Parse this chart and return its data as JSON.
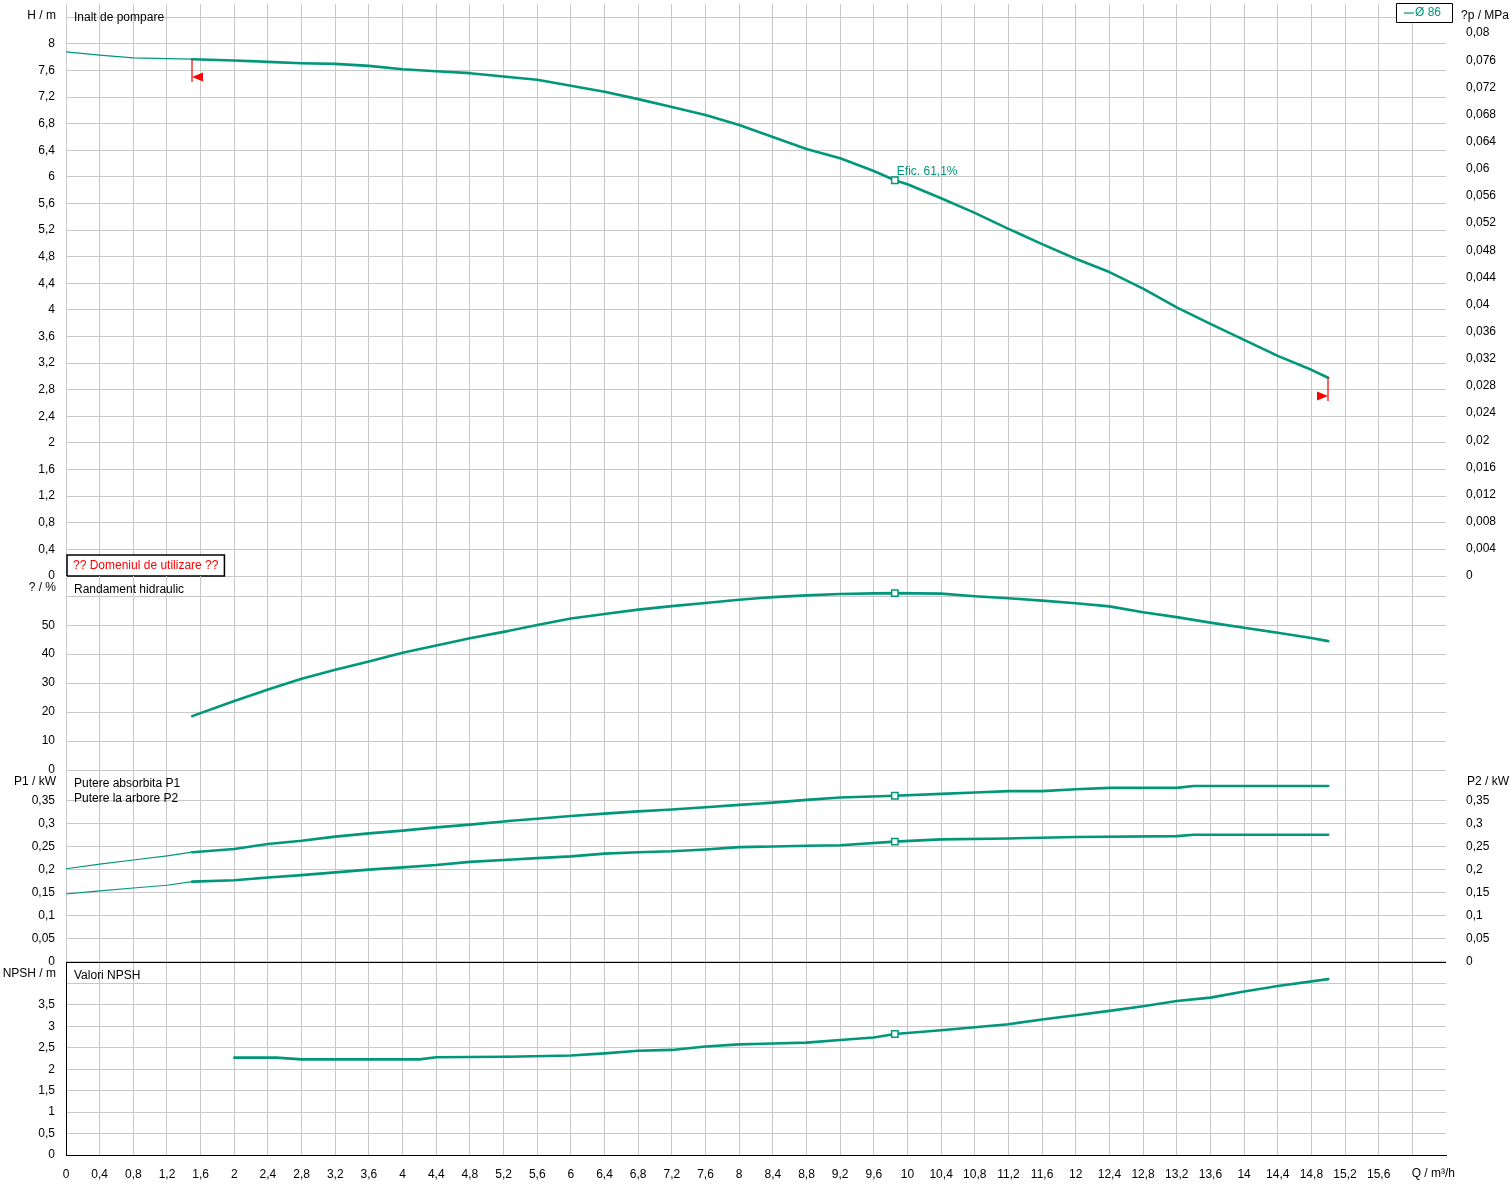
{
  "chart_data": [
    {
      "type": "line",
      "title": "Inalt de pompare",
      "ylabel": "H / m",
      "y2label": "?p / MPa",
      "legend": "top right",
      "grid": true,
      "tick_labels": "y",
      "annotations": [
        "?? Domeniul de utilizare ??",
        {
          "text": "Efic. 61,1%",
          "x": 9.85,
          "y": 5.95
        }
      ],
      "xlim": [
        0,
        16.4
      ],
      "xticks": [
        0,
        0.4,
        0.8,
        1.2,
        1.6,
        2,
        2.4,
        2.8,
        3.2,
        3.6,
        4,
        4.4,
        4.8,
        5.2,
        5.6,
        6,
        6.4,
        6.8,
        7.2,
        7.6,
        8,
        8.4,
        8.8,
        9.2,
        9.6,
        10,
        10.4,
        10.8,
        11.2,
        11.6,
        12,
        12.4,
        12.8,
        13.2,
        13.6,
        14,
        14.4,
        14.8,
        15.2,
        15.6,
        16
      ],
      "ylim": [
        0,
        8.6
      ],
      "yticks": [
        0,
        {
          "value": 0.4,
          "label": "0,4"
        },
        {
          "value": 0.8,
          "label": "0,8"
        },
        {
          "value": 1.2,
          "label": "1,2"
        },
        {
          "value": 1.6,
          "label": "1,6"
        },
        2,
        {
          "value": 2.4,
          "label": "2,4"
        },
        {
          "value": 2.8,
          "label": "2,8"
        },
        {
          "value": 3.2,
          "label": "3,2"
        },
        {
          "value": 3.6,
          "label": "3,6"
        },
        4,
        {
          "value": 4.4,
          "label": "4,4"
        },
        {
          "value": 4.8,
          "label": "4,8"
        },
        {
          "value": 5.2,
          "label": "5,2"
        },
        {
          "value": 5.6,
          "label": "5,6"
        },
        6,
        {
          "value": 6.4,
          "label": "6,4"
        },
        {
          "value": 6.8,
          "label": "6,8"
        },
        {
          "value": 7.2,
          "label": "7,2"
        },
        {
          "value": 7.6,
          "label": "7,6"
        },
        8,
        {
          "value": 8.4,
          "label": null
        }
      ],
      "y2lim": [
        0,
        0.0843
      ],
      "y2ticks": [
        0,
        {
          "value": 0.004,
          "label": "0,004"
        },
        {
          "value": 0.008,
          "label": "0,008"
        },
        {
          "value": 0.012,
          "label": "0,012"
        },
        {
          "value": 0.016,
          "label": "0,016"
        },
        {
          "value": 0.02,
          "label": "0,02"
        },
        {
          "value": 0.024,
          "label": "0,024"
        },
        {
          "value": 0.028,
          "label": "0,028"
        },
        {
          "value": 0.032,
          "label": "0,032"
        },
        {
          "value": 0.036,
          "label": "0,036"
        },
        {
          "value": 0.04,
          "label": "0,04"
        },
        {
          "value": 0.044,
          "label": "0,044"
        },
        {
          "value": 0.048,
          "label": "0,048"
        },
        {
          "value": 0.052,
          "label": "0,052"
        },
        {
          "value": 0.056,
          "label": "0,056"
        },
        {
          "value": 0.06,
          "label": "0,06"
        },
        {
          "value": 0.064,
          "label": "0,064"
        },
        {
          "value": 0.068,
          "label": "0,068"
        },
        {
          "value": 0.072,
          "label": "0,072"
        },
        {
          "value": 0.076,
          "label": "0,076"
        },
        {
          "value": 0.08,
          "label": "0,08"
        }
      ],
      "series": [
        {
          "color": "#00977a",
          "x": [
            0,
            0.4,
            0.8,
            1.2,
            1.5
          ],
          "values": [
            7.88,
            7.83,
            7.79,
            7.78,
            7.77
          ]
        },
        {
          "name": "Ø 86",
          "color": "#00977a",
          "x": [
            1.5,
            2,
            2.4,
            2.8,
            3.2,
            3.6,
            4,
            4.4,
            4.8,
            5.2,
            5.6,
            6,
            6.4,
            6.8,
            7.2,
            7.6,
            8,
            8.4,
            8.8,
            9.2,
            9.6,
            9.85,
            10,
            10.4,
            10.8,
            11.2,
            11.6,
            12,
            12.4,
            12.8,
            13.2,
            13.6,
            14,
            14.4,
            14.8,
            15
          ],
          "values": [
            7.77,
            7.75,
            7.73,
            7.71,
            7.7,
            7.67,
            7.62,
            7.59,
            7.56,
            7.51,
            7.46,
            7.37,
            7.28,
            7.17,
            7.05,
            6.93,
            6.78,
            6.6,
            6.42,
            6.28,
            6.09,
            5.95,
            5.89,
            5.68,
            5.46,
            5.22,
            4.99,
            4.77,
            4.57,
            4.32,
            4.04,
            3.79,
            3.55,
            3.31,
            3.1,
            2.98
          ]
        },
        {
          "type": "scatter",
          "marker": "square",
          "color": "#00977a",
          "x": [
            9.85
          ],
          "values": [
            5.95
          ]
        }
      ]
    },
    {
      "type": "line",
      "title": "Randament hidraulic",
      "ylabel": "? / %",
      "grid": true,
      "tick_labels": "y",
      "xlim": [
        0,
        16.4
      ],
      "xticks": [
        0,
        0.4,
        0.8,
        1.2,
        1.6,
        2,
        2.4,
        2.8,
        3.2,
        3.6,
        4,
        4.4,
        4.8,
        5.2,
        5.6,
        6,
        6.4,
        6.8,
        7.2,
        7.6,
        8,
        8.4,
        8.8,
        9.2,
        9.6,
        10,
        10.4,
        10.8,
        11.2,
        11.6,
        12,
        12.4,
        12.8,
        13.2,
        13.6,
        14,
        14.4,
        14.8,
        15.2,
        15.6,
        16
      ],
      "ylim": [
        0,
        67
      ],
      "yticks": [
        0,
        10,
        20,
        30,
        40,
        50,
        {
          "value": 60,
          "label": null
        }
      ],
      "series": [
        {
          "color": "#00977a",
          "x": [
            1.5,
            2,
            2.4,
            2.8,
            3.2,
            3.6,
            4,
            4.4,
            4.8,
            5.2,
            5.6,
            6,
            6.4,
            6.8,
            7.2,
            7.6,
            8,
            8.4,
            8.8,
            9.2,
            9.6,
            9.85,
            10.4,
            10.8,
            11.2,
            11.6,
            12,
            12.4,
            12.8,
            13.2,
            13.6,
            14,
            14.4,
            14.8,
            15
          ],
          "values": [
            18.6,
            23.8,
            27.8,
            31.5,
            34.6,
            37.5,
            40.5,
            43,
            45.5,
            47.7,
            50.1,
            52.3,
            53.9,
            55.4,
            56.6,
            57.7,
            58.8,
            59.7,
            60.3,
            60.8,
            61,
            61.1,
            60.9,
            60,
            59.3,
            58.5,
            57.6,
            56.5,
            54.5,
            52.8,
            50.9,
            49.1,
            47.4,
            45.6,
            44.5
          ]
        },
        {
          "type": "scatter",
          "marker": "square",
          "color": "#00977a",
          "x": [
            9.85
          ],
          "values": [
            61.1
          ]
        }
      ]
    },
    {
      "type": "line",
      "title": "Putere absorbita P1",
      "subtitle": "Putere la arbore P2",
      "ylabel": "P1 / kW",
      "y2label": "P2 / kW",
      "grid": true,
      "tick_labels": "y",
      "xlim": [
        0,
        16.4
      ],
      "xticks": [
        0,
        0.4,
        0.8,
        1.2,
        1.6,
        2,
        2.4,
        2.8,
        3.2,
        3.6,
        4,
        4.4,
        4.8,
        5.2,
        5.6,
        6,
        6.4,
        6.8,
        7.2,
        7.6,
        8,
        8.4,
        8.8,
        9.2,
        9.6,
        10,
        10.4,
        10.8,
        11.2,
        11.6,
        12,
        12.4,
        12.8,
        13.2,
        13.6,
        14,
        14.4,
        14.8,
        15.2,
        15.6,
        16
      ],
      "ylim": [
        0,
        0.417
      ],
      "yticks": [
        0,
        {
          "value": 0.05,
          "label": "0,05"
        },
        {
          "value": 0.1,
          "label": "0,1"
        },
        {
          "value": 0.15,
          "label": "0,15"
        },
        {
          "value": 0.2,
          "label": "0,2"
        },
        {
          "value": 0.25,
          "label": "0,25"
        },
        {
          "value": 0.3,
          "label": "0,3"
        },
        {
          "value": 0.35,
          "label": "0,35"
        }
      ],
      "y2lim": [
        0,
        0.417
      ],
      "y2ticks": [
        0,
        {
          "value": 0.05,
          "label": "0,05"
        },
        {
          "value": 0.1,
          "label": "0,1"
        },
        {
          "value": 0.15,
          "label": "0,15"
        },
        {
          "value": 0.2,
          "label": "0,2"
        },
        {
          "value": 0.25,
          "label": "0,25"
        },
        {
          "value": 0.3,
          "label": "0,3"
        },
        {
          "value": 0.35,
          "label": "0,35"
        }
      ],
      "series": [
        {
          "color": "#00977a",
          "x": [
            0,
            0.4,
            0.8,
            1.2,
            1.5,
            2,
            2.4,
            2.8,
            3.2,
            3.6,
            4,
            4.4,
            4.8,
            5.2,
            5.6,
            6,
            6.4,
            6.8,
            7.2,
            7.6,
            8,
            8.4,
            8.8,
            9.2,
            9.85,
            10.4,
            10.8,
            11.2,
            11.6,
            12,
            12.4,
            13.2,
            13.4,
            15
          ],
          "values": [
            0.202,
            0.212,
            0.221,
            0.23,
            0.238,
            0.245,
            0.256,
            0.263,
            0.272,
            0.279,
            0.285,
            0.292,
            0.298,
            0.305,
            0.311,
            0.317,
            0.322,
            0.327,
            0.331,
            0.336,
            0.341,
            0.346,
            0.352,
            0.357,
            0.361,
            0.365,
            0.368,
            0.371,
            0.371,
            0.375,
            0.378,
            0.378,
            0.382,
            0.382
          ]
        },
        {
          "color": "#00977a",
          "x": [
            0,
            0.4,
            0.8,
            1.2,
            1.5,
            2,
            2.4,
            2.8,
            3.2,
            3.6,
            4,
            4.4,
            4.8,
            5.2,
            5.6,
            6,
            6.4,
            6.8,
            7.2,
            7.6,
            8,
            8.8,
            9.2,
            9.85,
            10.4,
            11.2,
            12,
            13.2,
            13.4,
            15
          ],
          "values": [
            0.147,
            0.154,
            0.16,
            0.166,
            0.174,
            0.177,
            0.183,
            0.188,
            0.194,
            0.2,
            0.205,
            0.21,
            0.217,
            0.221,
            0.225,
            0.229,
            0.235,
            0.238,
            0.24,
            0.244,
            0.249,
            0.252,
            0.253,
            0.261,
            0.266,
            0.268,
            0.271,
            0.273,
            0.276,
            0.276
          ]
        },
        {
          "type": "scatter",
          "marker": "square",
          "color": "#00977a",
          "x": [
            9.85
          ],
          "values": [
            0.361
          ]
        },
        {
          "type": "scatter",
          "marker": "square",
          "color": "#00977a",
          "x": [
            9.85
          ],
          "values": [
            0.261
          ]
        }
      ]
    },
    {
      "type": "line",
      "title": "Valori NPSH",
      "ylabel": "NPSH / m",
      "xlabel": "Q / m³/h",
      "grid": true,
      "xlim": [
        0,
        16.4
      ],
      "xticks": [
        0,
        {
          "value": 0.4,
          "label": "0,4"
        },
        {
          "value": 0.8,
          "label": "0,8"
        },
        {
          "value": 1.2,
          "label": "1,2"
        },
        {
          "value": 1.6,
          "label": "1,6"
        },
        2,
        {
          "value": 2.4,
          "label": "2,4"
        },
        {
          "value": 2.8,
          "label": "2,8"
        },
        {
          "value": 3.2,
          "label": "3,2"
        },
        {
          "value": 3.6,
          "label": "3,6"
        },
        4,
        {
          "value": 4.4,
          "label": "4,4"
        },
        {
          "value": 4.8,
          "label": "4,8"
        },
        {
          "value": 5.2,
          "label": "5,2"
        },
        {
          "value": 5.6,
          "label": "5,6"
        },
        6,
        {
          "value": 6.4,
          "label": "6,4"
        },
        {
          "value": 6.8,
          "label": "6,8"
        },
        {
          "value": 7.2,
          "label": "7,2"
        },
        {
          "value": 7.6,
          "label": "7,6"
        },
        8,
        {
          "value": 8.4,
          "label": "8,4"
        },
        {
          "value": 8.8,
          "label": "8,8"
        },
        {
          "value": 9.2,
          "label": "9,2"
        },
        {
          "value": 9.6,
          "label": "9,6"
        },
        10,
        {
          "value": 10.4,
          "label": "10,4"
        },
        {
          "value": 10.8,
          "label": "10,8"
        },
        {
          "value": 11.2,
          "label": "11,2"
        },
        {
          "value": 11.6,
          "label": "11,6"
        },
        12,
        {
          "value": 12.4,
          "label": "12,4"
        },
        {
          "value": 12.8,
          "label": "12,8"
        },
        {
          "value": 13.2,
          "label": "13,2"
        },
        {
          "value": 13.6,
          "label": "13,6"
        },
        14,
        {
          "value": 14.4,
          "label": "14,4"
        },
        {
          "value": 14.8,
          "label": "14,8"
        },
        {
          "value": 15.2,
          "label": "15,2"
        },
        {
          "value": 15.6,
          "label": "15,6"
        },
        {
          "value": 16,
          "label": null
        }
      ],
      "ylim": [
        0,
        4.5
      ],
      "yticks": [
        0,
        {
          "value": 0.5,
          "label": "0,5"
        },
        1,
        {
          "value": 1.5,
          "label": "1,5"
        },
        2,
        {
          "value": 2.5,
          "label": "2,5"
        },
        3,
        {
          "value": 3.5,
          "label": "3,5"
        },
        {
          "value": 4,
          "label": null
        }
      ],
      "series": [
        {
          "color": "#00977a",
          "x": [
            2,
            2.5,
            2.8,
            4.2,
            4.4,
            5.2,
            6,
            6.4,
            6.8,
            7.2,
            7.6,
            8,
            8.4,
            8.8,
            9.2,
            9.6,
            9.85,
            10.4,
            10.8,
            11.2,
            11.6,
            12,
            12.4,
            12.8,
            13.2,
            13.6,
            14,
            14.4,
            15
          ],
          "values": [
            2.27,
            2.27,
            2.23,
            2.23,
            2.28,
            2.29,
            2.32,
            2.37,
            2.43,
            2.45,
            2.53,
            2.58,
            2.6,
            2.62,
            2.68,
            2.74,
            2.82,
            2.91,
            2.98,
            3.05,
            3.16,
            3.26,
            3.36,
            3.47,
            3.59,
            3.67,
            3.81,
            3.94,
            4.1
          ]
        },
        {
          "type": "scatter",
          "marker": "square",
          "color": "#00977a",
          "x": [
            9.85
          ],
          "values": [
            2.82
          ]
        }
      ]
    }
  ]
}
